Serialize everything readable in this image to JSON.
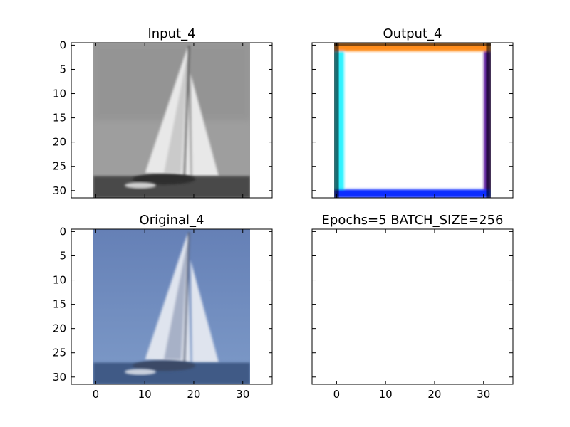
{
  "figure": {
    "background": "#ffffff"
  },
  "chart_data": [
    {
      "type": "image",
      "title": "Input_4",
      "xlim": [
        -5,
        36
      ],
      "ylim": [
        31.5,
        -0.5
      ],
      "xticks": [
        0,
        10,
        20,
        30
      ],
      "yticks": [
        0,
        5,
        10,
        15,
        20,
        25,
        30
      ],
      "show_xticklabels": false,
      "show_yticklabels": true,
      "image": {
        "kind": "grayscale-photo",
        "subject": "sailboat",
        "extent": [
          -0.5,
          31.5,
          31.5,
          -0.5
        ],
        "colors": {
          "sky": "#9e9e9e",
          "sail_light": "#e8e8e8",
          "sail_dark": "#5a5a5a",
          "hull": "#2e2e2e",
          "water": "#4a4a4a"
        }
      }
    },
    {
      "type": "image",
      "title": "Output_4",
      "xlim": [
        -5,
        36
      ],
      "ylim": [
        31.5,
        -0.5
      ],
      "xticks": [
        0,
        10,
        20,
        30
      ],
      "yticks": [
        0,
        5,
        10,
        15,
        20,
        25,
        30
      ],
      "show_xticklabels": false,
      "show_yticklabels": false,
      "image": {
        "kind": "rgb-output",
        "extent": [
          -0.5,
          31.5,
          31.5,
          -0.5
        ],
        "colors": {
          "fill": "#ffffff",
          "top": "#ff8c1a",
          "bottom": "#0a2dff",
          "left": "#2ef2ff",
          "right": "#5a1a9a",
          "corner": "#000000"
        }
      }
    },
    {
      "type": "image",
      "title": "Original_4",
      "xlim": [
        -5,
        36
      ],
      "ylim": [
        31.5,
        -0.5
      ],
      "xticks": [
        0,
        10,
        20,
        30
      ],
      "yticks": [
        0,
        5,
        10,
        15,
        20,
        25,
        30
      ],
      "show_xticklabels": true,
      "show_yticklabels": true,
      "image": {
        "kind": "color-photo",
        "subject": "sailboat",
        "extent": [
          -0.5,
          31.5,
          31.5,
          -0.5
        ],
        "colors": {
          "sky_top": "#6580b6",
          "sky_bottom": "#7d9ac8",
          "sail_light": "#dfe4ee",
          "sail_shadow": "#8e9bb6",
          "hull": "#3a4a66",
          "water": "#3f5a86"
        }
      }
    },
    {
      "type": "empty",
      "title": "Epochs=5 BATCH_SIZE=256",
      "xlim": [
        -5,
        36
      ],
      "ylim": [
        31.5,
        -0.5
      ],
      "xticks": [
        0,
        10,
        20,
        30
      ],
      "yticks": [
        0,
        5,
        10,
        15,
        20,
        25,
        30
      ],
      "show_xticklabels": true,
      "show_yticklabels": false
    }
  ]
}
